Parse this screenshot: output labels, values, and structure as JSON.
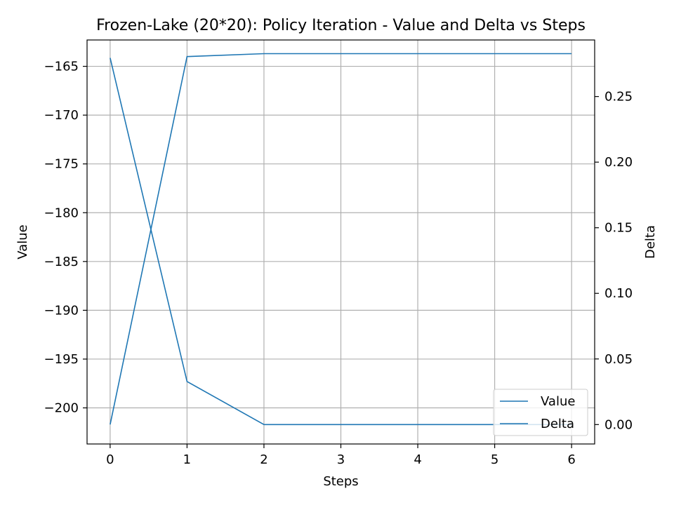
{
  "chart_data": {
    "type": "line",
    "title": "Frozen-Lake (20*20): Policy Iteration - Value and Delta vs Steps",
    "xlabel": "Steps",
    "ylabel": "Value",
    "y2label": "Delta",
    "x": [
      0,
      1,
      2,
      3,
      4,
      5,
      6
    ],
    "xlim": [
      -0.3,
      6.3
    ],
    "ylim": [
      -203.7,
      -162.3
    ],
    "y2lim": [
      -0.0148,
      0.2931
    ],
    "xticks": [
      0,
      1,
      2,
      3,
      4,
      5,
      6
    ],
    "yticks": [
      -200,
      -195,
      -190,
      -185,
      -180,
      -175,
      -170,
      -165
    ],
    "y2ticks": [
      "0.00",
      "0.05",
      "0.10",
      "0.15",
      "0.20",
      "0.25"
    ],
    "grid": true,
    "legend_position": "bottom-right",
    "series": [
      {
        "name": "Value",
        "axis": "left",
        "color": "#1f77b4",
        "values": [
          -201.7,
          -164.0,
          -163.7,
          -163.7,
          -163.7,
          -163.7,
          -163.7
        ]
      },
      {
        "name": "Delta",
        "axis": "right",
        "color": "#1f77b4",
        "values": [
          0.2794,
          0.0328,
          0.0,
          0.0,
          0.0,
          0.0,
          0.0
        ]
      }
    ]
  }
}
